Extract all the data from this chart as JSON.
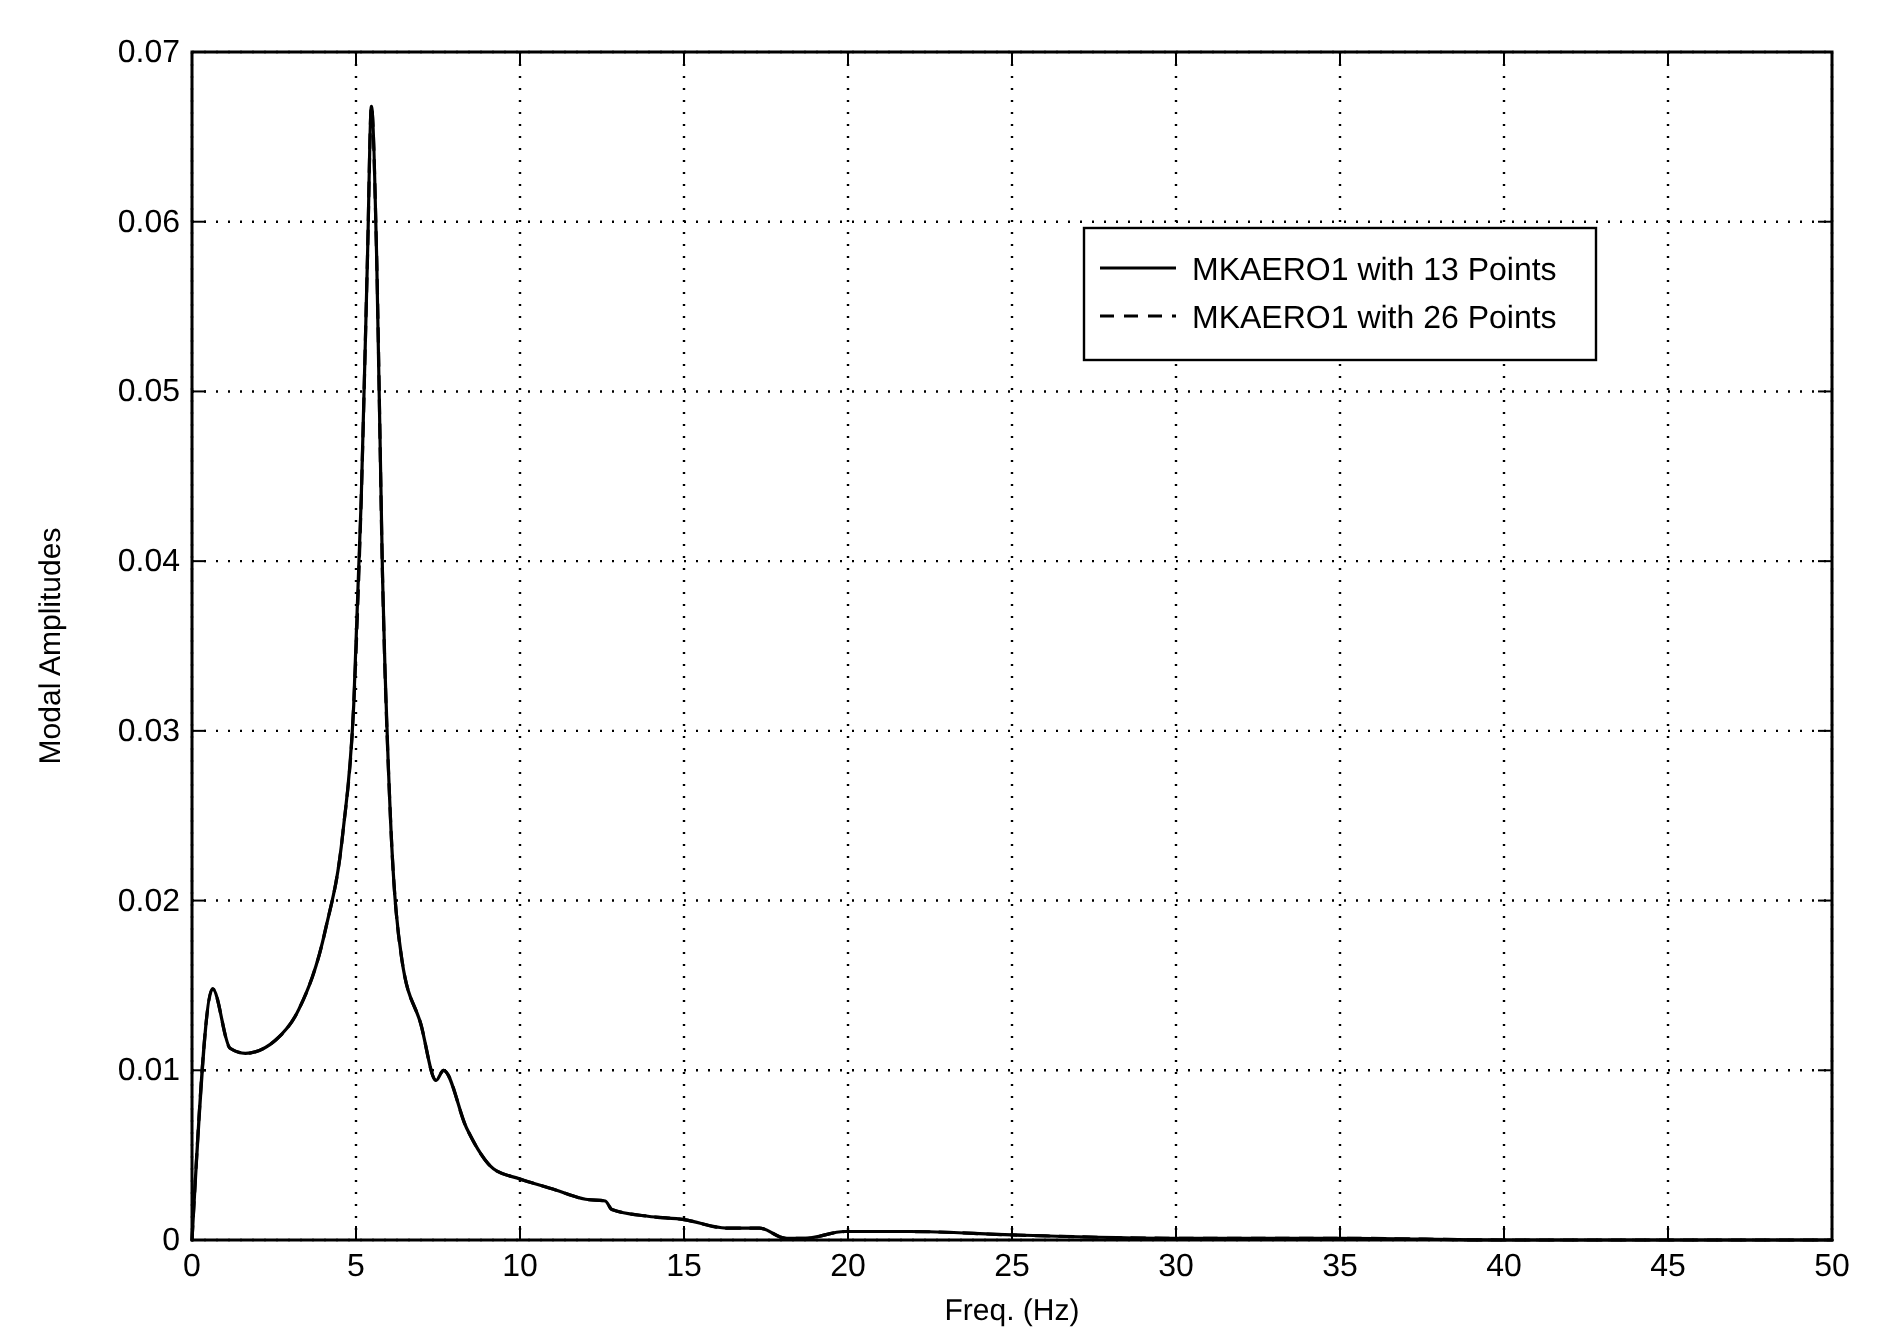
{
  "chart_data": {
    "type": "line",
    "xlabel": "Freq. (Hz)",
    "ylabel": "Modal Amplitudes",
    "x": [
      0,
      0.63,
      1.16,
      1.63,
      2.56,
      3.26,
      4.07,
      4.6,
      4.93,
      5.16,
      5.35,
      5.47,
      5.63,
      5.81,
      6.05,
      6.4,
      6.98,
      7.44,
      7.67,
      8.37,
      9.19,
      10,
      11,
      12,
      12.6,
      12.8,
      13.9,
      15,
      16.3,
      17.3,
      18.1,
      18.7,
      19.9,
      21.9,
      25,
      30,
      35,
      40,
      45,
      50
    ],
    "series": [
      {
        "name": "MKAERO1 with 13 Points",
        "color": "#000000",
        "line_style": "solid",
        "values": [
          0,
          0.0148,
          0.0113,
          0.011,
          0.0118,
          0.0136,
          0.0183,
          0.024,
          0.0315,
          0.0437,
          0.0579,
          0.0668,
          0.0579,
          0.039,
          0.0249,
          0.0165,
          0.0127,
          0.0094,
          0.01,
          0.0066,
          0.0042,
          0.0036,
          0.003,
          0.0024,
          0.0023,
          0.0018,
          0.0014,
          0.0012,
          0.0007,
          0.0007,
          0.0001,
          0.0001,
          0.0005,
          0.0005,
          0.0003,
          0.0001,
          0.0001,
          0,
          0,
          0
        ]
      },
      {
        "name": "MKAERO1 with 26 Points",
        "color": "#000000",
        "line_style": "dashed",
        "values": [
          0,
          0.0148,
          0.0113,
          0.011,
          0.0118,
          0.0136,
          0.0183,
          0.024,
          0.0315,
          0.0437,
          0.0579,
          0.0668,
          0.0579,
          0.039,
          0.0249,
          0.0165,
          0.0127,
          0.0094,
          0.01,
          0.0066,
          0.0042,
          0.0036,
          0.003,
          0.0024,
          0.0023,
          0.0018,
          0.0014,
          0.0012,
          0.0007,
          0.0007,
          0.0001,
          0.0001,
          0.0005,
          0.0005,
          0.0003,
          0.0001,
          0.0001,
          0,
          0,
          0
        ]
      }
    ],
    "xlim": [
      0,
      50
    ],
    "xticks": [
      0,
      5,
      10,
      15,
      20,
      25,
      30,
      35,
      40,
      45,
      50
    ],
    "ylim": [
      0,
      0.07
    ],
    "yticks": [
      0,
      0.01,
      0.02,
      0.03,
      0.04,
      0.05,
      0.06,
      0.07
    ],
    "grid": true,
    "legend": "top right"
  }
}
